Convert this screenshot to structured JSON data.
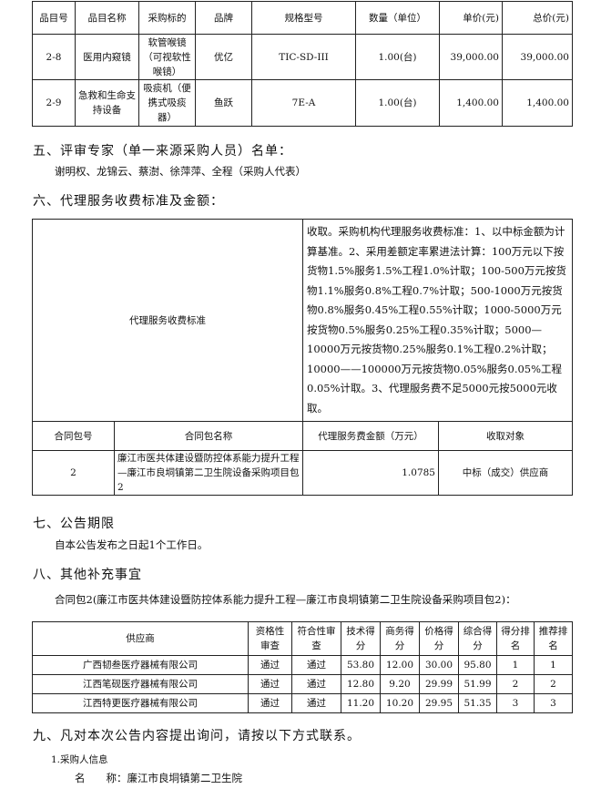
{
  "items_table": {
    "headers": [
      "品目号",
      "品目名称",
      "采购标的",
      "品牌",
      "规格型号",
      "数量（单位）",
      "单价(元)",
      "总价(元)"
    ],
    "rows": [
      [
        "2-8",
        "医用内窥镜",
        "软管喉镜（可视软性喉镜）",
        "优亿",
        "TIC-SD-III",
        "1.00(台)",
        "39,000.00",
        "39,000.00"
      ],
      [
        "2-9",
        "急救和生命支持设备",
        "吸痰机（便携式吸痰器）",
        "鱼跃",
        "7E-A",
        "1.00(台)",
        "1,400.00",
        "1,400.00"
      ]
    ]
  },
  "section5": {
    "heading": "五、评审专家（单一来源采购人员）名单：",
    "names": "谢明权、龙锦云、蔡澍、徐萍萍、全程（采购人代表）"
  },
  "section6": {
    "heading": "六、代理服务收费标准及金额：",
    "fee_label": "代理服务收费标准",
    "fee_text": "收取。采购机构代理服务收费标准：1、以中标金额为计算基准。2、采用差额定率累进法计算：100万元以下按货物1.5%服务1.5%工程1.0%计取；100-500万元按货物1.1%服务0.8%工程0.7%计取；500-1000万元按货物0.8%服务0.45%工程0.55%计取；1000-5000万元按货物0.5%服务0.25%工程0.35%计取；5000—10000万元按货物0.25%服务0.1%工程0.2%计取；10000——100000万元按货物0.05%服务0.05%工程0.05%计取。3、代理服务费不足5000元按5000元收取。",
    "headers": [
      "合同包号",
      "合同包名称",
      "代理服务费金额（万元）",
      "收取对象"
    ],
    "row": [
      "2",
      "廉江市医共体建设暨防控体系能力提升工程—廉江市良垌镇第二卫生院设备采购项目包2",
      "1.0785",
      "中标（成交）供应商"
    ]
  },
  "section7": {
    "heading": "七、公告期限",
    "text": "自本公告发布之日起1个工作日。"
  },
  "section8": {
    "heading": "八、其他补充事宜",
    "package_line": "合同包2(廉江市医共体建设暨防控体系能力提升工程—廉江市良垌镇第二卫生院设备采购项目包2)：",
    "headers": [
      "供应商",
      "资格性审查",
      "符合性审查",
      "技术得分",
      "商务得分",
      "价格得分",
      "综合得分",
      "得分排名",
      "推荐排名"
    ],
    "rows": [
      [
        "广西韧叁医疗器械有限公司",
        "通过",
        "通过",
        "53.80",
        "12.00",
        "30.00",
        "95.80",
        "1",
        "1"
      ],
      [
        "江西笔砚医疗器械有限公司",
        "通过",
        "通过",
        "12.80",
        "9.20",
        "29.99",
        "51.99",
        "2",
        "2"
      ],
      [
        "江西特更医疗器械有限公司",
        "通过",
        "通过",
        "11.20",
        "10.20",
        "29.95",
        "51.35",
        "3",
        "3"
      ]
    ]
  },
  "section9": {
    "heading": "九、凡对本次公告内容提出询问，请按以下方式联系。",
    "sub": "1.采购人信息",
    "name_label": "名　　称：",
    "name_value": "廉江市良垌镇第二卫生院"
  }
}
